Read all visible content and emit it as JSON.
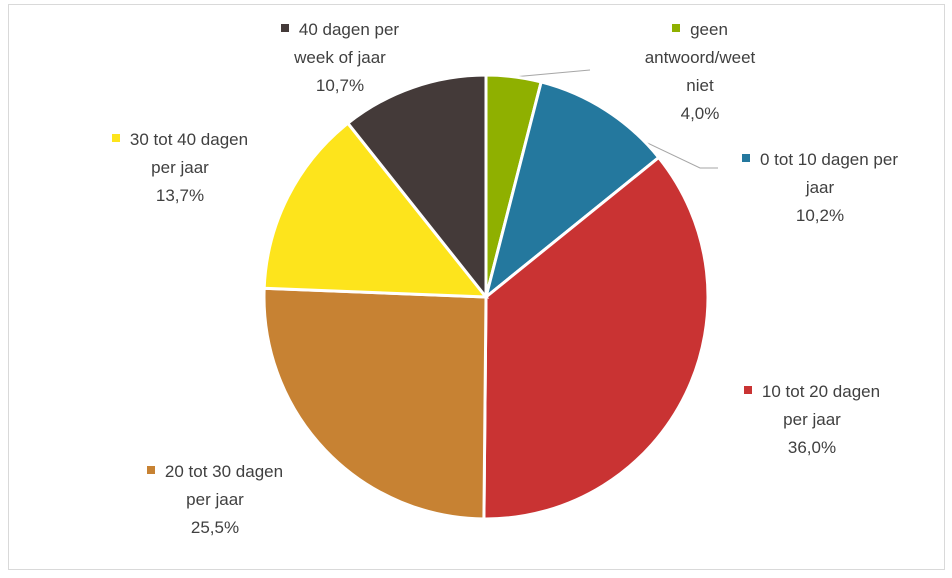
{
  "chart_data": {
    "type": "pie",
    "categories": [
      "geen antwoord/weet niet",
      "0 tot 10 dagen per jaar",
      "10 tot 20 dagen per jaar",
      "20 tot 30 dagen per jaar",
      "30 tot 40 dagen per jaar",
      "40 dagen per week of jaar"
    ],
    "values": [
      4.0,
      10.2,
      36.0,
      25.5,
      13.7,
      10.7
    ],
    "value_labels": [
      "4,0%",
      "10,2%",
      "36,0%",
      "25,5%",
      "13,7%",
      "10,7%"
    ],
    "colors": [
      "#8fb000",
      "#24789e",
      "#c93333",
      "#c78233",
      "#fde41c",
      "#443a39"
    ]
  }
}
